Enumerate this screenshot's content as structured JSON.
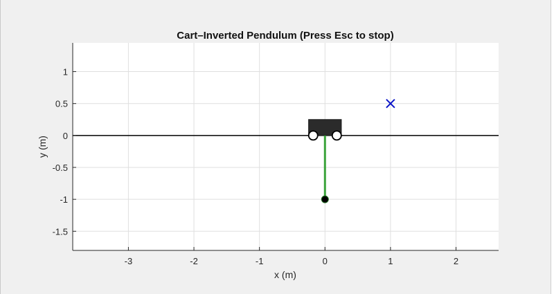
{
  "window": {
    "background": "#f0f0f0"
  },
  "chart_data": {
    "type": "scatter",
    "title": "Cart–Inverted Pendulum (Press Esc to stop)",
    "xlabel": "x (m)",
    "ylabel": "y (m)",
    "xlim": [
      -3.85,
      2.65
    ],
    "ylim": [
      -1.8,
      1.45
    ],
    "xticks": [
      -3,
      -2,
      -1,
      0,
      1,
      2
    ],
    "xtick_labels": [
      "-3",
      "-2",
      "-1",
      "0",
      "1",
      "2"
    ],
    "yticks": [
      1,
      0.5,
      0,
      -0.5,
      -1,
      -1.5
    ],
    "ytick_labels": [
      "1",
      "0.5",
      "0",
      "-0.5",
      "-1",
      "-1.5"
    ],
    "grid": true,
    "ground_line_y": 0,
    "cart": {
      "x_range": [
        -0.25,
        0.25
      ],
      "y_range": [
        0,
        0.25
      ],
      "color": "#2b2b2b"
    },
    "wheels": [
      {
        "x": -0.18,
        "y": 0
      },
      {
        "x": 0.18,
        "y": 0
      }
    ],
    "pendulum": {
      "pivot": [
        0,
        0
      ],
      "bob": [
        0,
        -1
      ],
      "rod_color": "#3aa33a",
      "bob_color": "#000000"
    },
    "target": {
      "x": 1,
      "y": 0.5,
      "marker": "x",
      "color": "#0a14c8"
    }
  }
}
